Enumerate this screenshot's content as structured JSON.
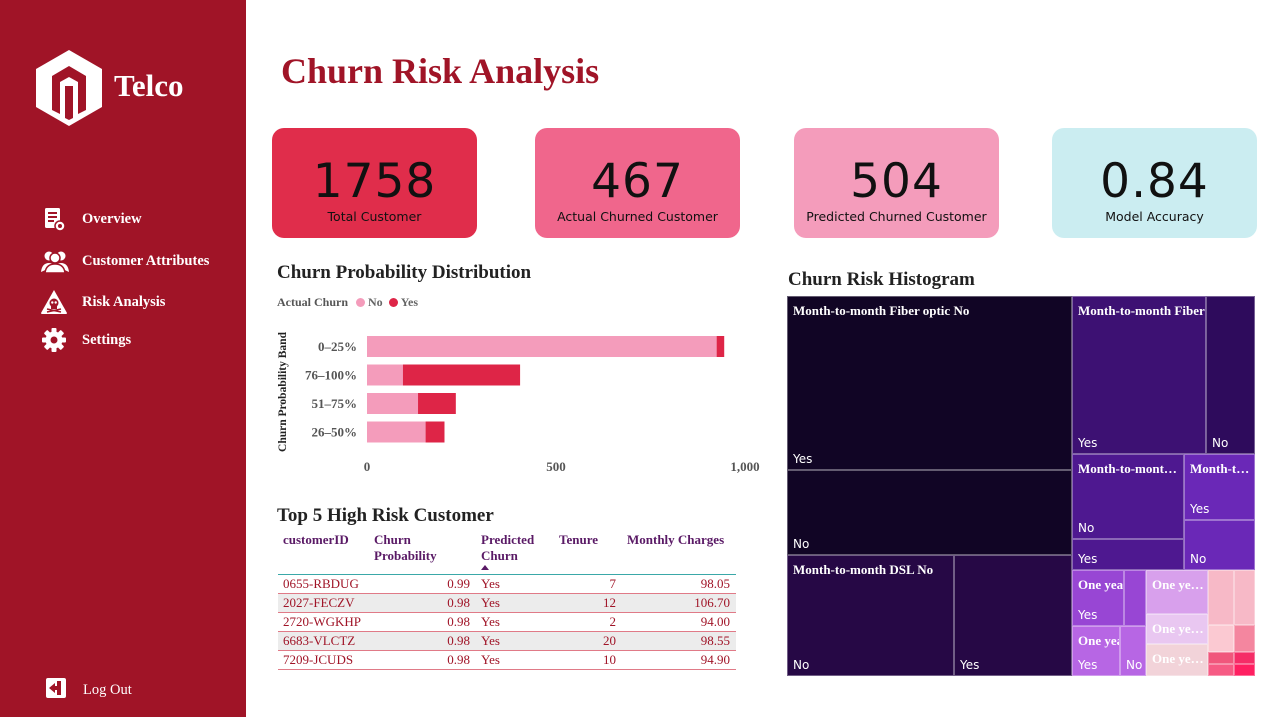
{
  "sidebar": {
    "brand": "Telco",
    "items": [
      {
        "label": "Overview",
        "icon": "document-chart-icon"
      },
      {
        "label": "Customer Attributes",
        "icon": "users-icon"
      },
      {
        "label": "Risk Analysis",
        "icon": "warning-skull-icon"
      },
      {
        "label": "Settings",
        "icon": "gear-icon"
      }
    ],
    "logout": "Log Out"
  },
  "header": {
    "title": "Churn Risk Analysis"
  },
  "kpis": [
    {
      "value": "1758",
      "label": "Total Customer",
      "color": "#e02d4b"
    },
    {
      "value": "467",
      "label": "Actual Churned Customer",
      "color": "#f0668c"
    },
    {
      "value": "504",
      "label": "Predicted Churned Customer",
      "color": "#f49cbb"
    },
    {
      "value": "0.84",
      "label": "Model Accuracy",
      "color": "#cbedf1"
    }
  ],
  "bar_chart": {
    "title": "Churn Probability Distribution",
    "legend_title": "Actual Churn",
    "legend": [
      {
        "name": "No",
        "color": "#f49cbb"
      },
      {
        "name": "Yes",
        "color": "#de2547"
      }
    ],
    "ylabel": "Churn Probability Band"
  },
  "chart_data": {
    "type": "bar",
    "orientation": "horizontal",
    "stacked": true,
    "categories": [
      "0–25%",
      "76–100%",
      "51–75%",
      "26–50%"
    ],
    "series": [
      {
        "name": "No",
        "values": [
          925,
          95,
          135,
          155
        ]
      },
      {
        "name": "Yes",
        "values": [
          20,
          310,
          100,
          50
        ]
      }
    ],
    "xticks": [
      "0",
      "500",
      "1,000"
    ],
    "xlim": [
      0,
      1000
    ],
    "ylabel": "Churn Probability Band",
    "title": "Churn Probability Distribution"
  },
  "table": {
    "title": "Top 5 High Risk Customer",
    "columns": [
      "customerID",
      "Churn Probability",
      "Predicted Churn",
      "Tenure",
      "Monthly Charges"
    ],
    "rows": [
      {
        "id": "0655-RBDUG",
        "prob": "0.99",
        "pred": "Yes",
        "tenure": "7",
        "charges": "98.05"
      },
      {
        "id": "2027-FECZV",
        "prob": "0.98",
        "pred": "Yes",
        "tenure": "12",
        "charges": "106.70"
      },
      {
        "id": "2720-WGKHP",
        "prob": "0.98",
        "pred": "Yes",
        "tenure": "2",
        "charges": "94.00"
      },
      {
        "id": "6683-VLCTZ",
        "prob": "0.98",
        "pred": "Yes",
        "tenure": "20",
        "charges": "98.55"
      },
      {
        "id": "7209-JCUDS",
        "prob": "0.98",
        "pred": "Yes",
        "tenure": "10",
        "charges": "94.90"
      }
    ]
  },
  "treemap": {
    "title": "Churn Risk Histogram",
    "cells": [
      {
        "hdr": "Month-to-month Fiber optic No",
        "sub": "Yes",
        "color": "#110525"
      },
      {
        "hdr": "",
        "sub": "No",
        "color": "#110525"
      },
      {
        "hdr": "Month-to-month Fiber opti…",
        "sub": "Yes",
        "color": "#3d1173"
      },
      {
        "hdr": "",
        "sub": "No",
        "color": "#2e0b5c"
      },
      {
        "hdr": "Month-to-mont…",
        "sub": "No",
        "color": "#4e1890"
      },
      {
        "hdr": "",
        "sub": "Yes",
        "color": "#4e1890"
      },
      {
        "hdr": "Month-t…",
        "sub": "Yes",
        "color": "#6a28b7"
      },
      {
        "hdr": "",
        "sub": "No",
        "color": "#6a28b7"
      },
      {
        "hdr": "Month-to-month DSL No",
        "sub": "No",
        "color": "#260845"
      },
      {
        "hdr": "",
        "sub": "Yes",
        "color": "#260845"
      },
      {
        "hdr": "One yea…",
        "sub": "Yes",
        "color": "#9846d4"
      },
      {
        "hdr": "",
        "sub": "",
        "color": "#9846d4"
      },
      {
        "hdr": "One ye…",
        "sub": "",
        "color": "#d8a0ec"
      },
      {
        "hdr": "One yea…",
        "sub": "Yes",
        "color": "#b766e4"
      },
      {
        "hdr": "",
        "sub": "No",
        "color": "#b766e4"
      },
      {
        "hdr": "One ye…",
        "sub": "",
        "color": "#e9c7f1"
      },
      {
        "hdr": "One ye…",
        "sub": "",
        "color": "#f2d3d9"
      },
      {
        "hdr": "",
        "sub": "",
        "color": "#f7b9c7"
      },
      {
        "hdr": "",
        "sub": "",
        "color": "#f7b9c7"
      },
      {
        "hdr": "",
        "sub": "",
        "color": "#fbc9d2"
      },
      {
        "hdr": "",
        "sub": "",
        "color": "#f4869f"
      },
      {
        "hdr": "",
        "sub": "",
        "color": "#f0577c"
      },
      {
        "hdr": "",
        "sub": "",
        "color": "#f65b84"
      },
      {
        "hdr": "",
        "sub": "",
        "color": "#f52d67"
      },
      {
        "hdr": "",
        "sub": "",
        "color": "#ff1f61"
      }
    ]
  }
}
